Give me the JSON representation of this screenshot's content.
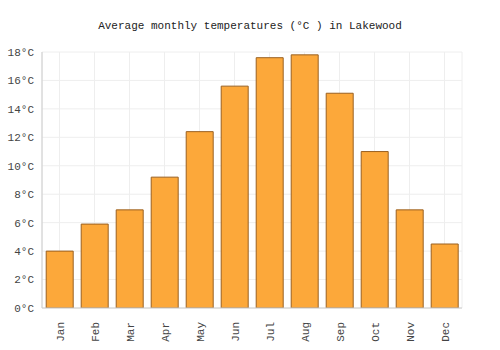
{
  "chart_data": {
    "type": "bar",
    "title": "Average monthly temperatures (°C ) in Lakewood",
    "categories": [
      "Jan",
      "Feb",
      "Mar",
      "Apr",
      "May",
      "Jun",
      "Jul",
      "Aug",
      "Sep",
      "Oct",
      "Nov",
      "Dec"
    ],
    "values": [
      4.0,
      5.9,
      6.9,
      9.2,
      12.4,
      15.6,
      17.6,
      17.8,
      15.1,
      11.0,
      6.9,
      4.5
    ],
    "color": "#fca83a",
    "ylim": [
      0,
      18
    ],
    "yticks": [
      {
        "value": 0,
        "label": "0°C"
      },
      {
        "value": 2,
        "label": "2°C"
      },
      {
        "value": 4,
        "label": "4°C"
      },
      {
        "value": 6,
        "label": "6°C"
      },
      {
        "value": 8,
        "label": "8°C"
      },
      {
        "value": 10,
        "label": "10°C"
      },
      {
        "value": 12,
        "label": "12°C"
      },
      {
        "value": 14,
        "label": "14°C"
      },
      {
        "value": 16,
        "label": "16°C"
      },
      {
        "value": 18,
        "label": "18°C"
      }
    ],
    "grid": true
  }
}
